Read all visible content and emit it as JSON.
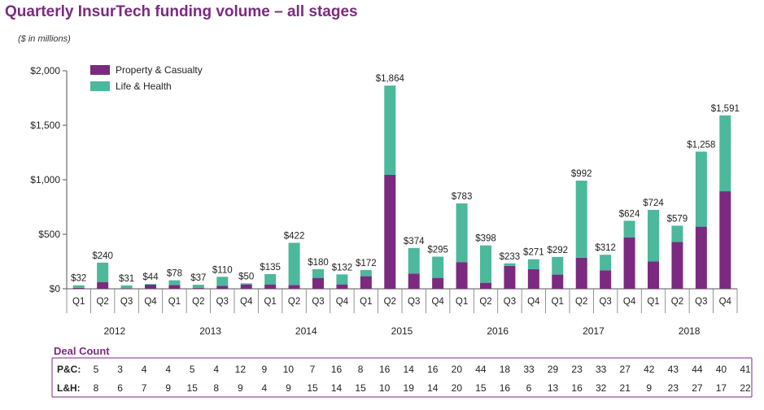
{
  "page": {
    "title": "Quarterly InsurTech funding volume – all stages",
    "units": "($ in millions)"
  },
  "colors": {
    "pc": "#7b2a7f",
    "lh": "#4cb89c",
    "title": "#7a2a80",
    "deal_label": "#7a2a80"
  },
  "chart_data": {
    "type": "bar",
    "stacked": true,
    "title": "Quarterly InsurTech funding volume – all stages",
    "ylabel": "($ in millions)",
    "ylim": [
      0,
      2000
    ],
    "yticks": [
      0,
      500,
      1000,
      1500,
      2000
    ],
    "ytick_labels": [
      "$0",
      "$500",
      "$1,000",
      "$1,500",
      "$2,000"
    ],
    "legend_position": "top-left",
    "categories": [
      "Q1",
      "Q2",
      "Q3",
      "Q4",
      "Q1",
      "Q2",
      "Q3",
      "Q4",
      "Q1",
      "Q2",
      "Q3",
      "Q4",
      "Q1",
      "Q2",
      "Q3",
      "Q4",
      "Q1",
      "Q2",
      "Q3",
      "Q4",
      "Q1",
      "Q2",
      "Q3",
      "Q4",
      "Q1",
      "Q2",
      "Q3",
      "Q4"
    ],
    "years": [
      "2012",
      "2013",
      "2014",
      "2015",
      "2016",
      "2017",
      "2018"
    ],
    "series": [
      {
        "name": "Property & Casualty",
        "color": "#7b2a7f",
        "values": [
          8,
          62,
          5,
          38,
          35,
          7,
          28,
          40,
          40,
          35,
          100,
          40,
          115,
          1045,
          140,
          100,
          245,
          55,
          210,
          180,
          130,
          285,
          170,
          470,
          250,
          430,
          570,
          895
        ]
      },
      {
        "name": "Life & Health",
        "color": "#4cb89c",
        "values": [
          24,
          178,
          26,
          6,
          43,
          30,
          82,
          10,
          95,
          387,
          80,
          92,
          57,
          819,
          234,
          195,
          538,
          343,
          23,
          91,
          162,
          707,
          142,
          154,
          474,
          149,
          688,
          696
        ]
      }
    ],
    "total_labels": [
      "$32",
      "$240",
      "$31",
      "$44",
      "$78",
      "$37",
      "$110",
      "$50",
      "$135",
      "$422",
      "$180",
      "$132",
      "$172",
      "$1,864",
      "$374",
      "$295",
      "$783",
      "$398",
      "$233",
      "$271",
      "$292",
      "$992",
      "$312",
      "$624",
      "$724",
      "$579",
      "$1,258",
      "$1,591"
    ]
  },
  "deal_count": {
    "title": "Deal Count",
    "pc_label": "P&C:",
    "lh_label": "L&H:",
    "pc": [
      "5",
      "3",
      "4",
      "4",
      "5",
      "4",
      "12",
      "9",
      "10",
      "7",
      "16",
      "8",
      "16",
      "14",
      "16",
      "20",
      "44",
      "18",
      "33",
      "29",
      "23",
      "33",
      "27",
      "42",
      "43",
      "44",
      "40",
      "41"
    ],
    "lh": [
      "8",
      "6",
      "7",
      "9",
      "15",
      "8",
      "9",
      "4",
      "9",
      "15",
      "14",
      "15",
      "10",
      "19",
      "14",
      "20",
      "15",
      "16",
      "6",
      "13",
      "16",
      "32",
      "21",
      "9",
      "23",
      "27",
      "17",
      "22"
    ]
  }
}
